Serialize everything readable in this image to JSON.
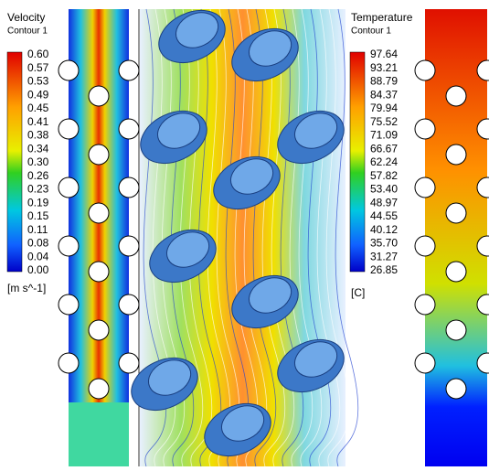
{
  "velocity_legend": {
    "title": "Velocity",
    "subtitle": "Contour 1",
    "labels": [
      "0.60",
      "0.57",
      "0.53",
      "0.49",
      "0.45",
      "0.41",
      "0.38",
      "0.34",
      "0.30",
      "0.26",
      "0.23",
      "0.19",
      "0.15",
      "0.11",
      "0.08",
      "0.04",
      "0.00"
    ],
    "unit": "[m s^-1]"
  },
  "temperature_legend": {
    "title": "Temperature",
    "subtitle": "Contour 1",
    "labels": [
      "97.64",
      "93.21",
      "88.79",
      "84.37",
      "79.94",
      "75.52",
      "71.09",
      "66.67",
      "62.24",
      "57.82",
      "53.40",
      "48.97",
      "44.55",
      "40.12",
      "35.70",
      "31.27",
      "26.85"
    ],
    "unit": "[C]"
  }
}
